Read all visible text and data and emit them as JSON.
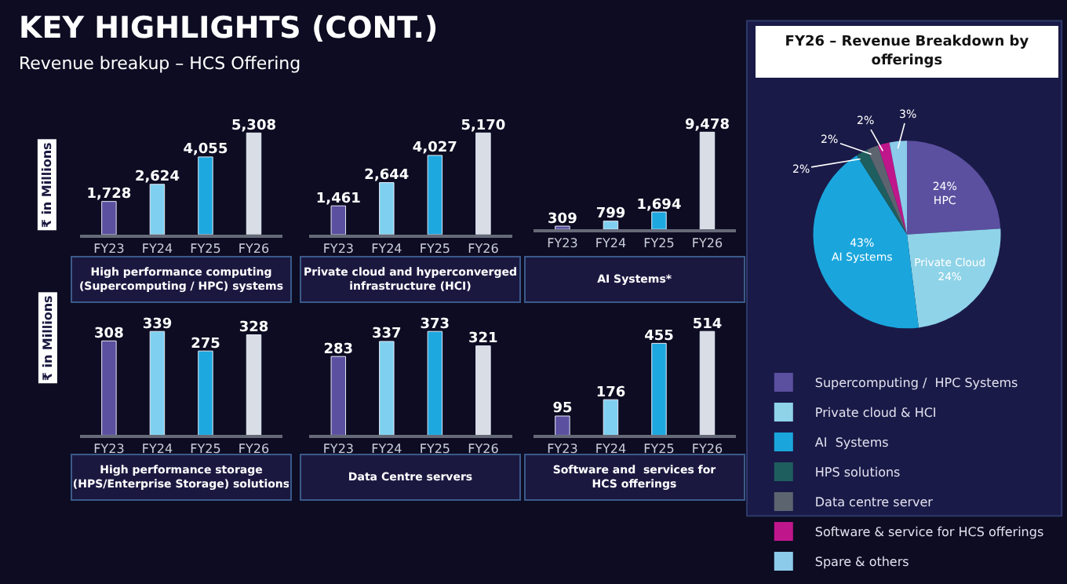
{
  "chart_data": [
    {
      "type": "other",
      "title": "KEY HIGHLIGHTS (CONT.)",
      "subtitle": "Revenue breakup – HCS Offering"
    },
    {
      "type": "bar",
      "title": "High performance computing\n(Supercomputing / HPC) systems",
      "ylabel": "₹ in Millions",
      "categories": [
        "FY23",
        "FY24",
        "FY25",
        "FY26"
      ],
      "values": [
        1728,
        2624,
        4055,
        5308
      ],
      "value_labels": [
        "1,728",
        "2,624",
        "4,055",
        "5,308"
      ],
      "colors": [
        "#5b4fa0",
        "#7fd0f0",
        "#1ea8e0",
        "#d8dde6"
      ]
    },
    {
      "type": "bar",
      "title": "Private cloud and hyperconverged\ninfrastructure (HCI)",
      "categories": [
        "FY23",
        "FY24",
        "FY25",
        "FY26"
      ],
      "values": [
        1461,
        2644,
        4027,
        5170
      ],
      "value_labels": [
        "1,461",
        "2,644",
        "4,027",
        "5,170"
      ],
      "colors": [
        "#5b4fa0",
        "#7fd0f0",
        "#1ea8e0",
        "#d8dde6"
      ]
    },
    {
      "type": "bar",
      "title": "AI Systems*",
      "categories": [
        "FY23",
        "FY24",
        "FY25",
        "FY26"
      ],
      "values": [
        309,
        799,
        1694,
        9478
      ],
      "value_labels": [
        "309",
        "799",
        "1,694",
        "9,478"
      ],
      "colors": [
        "#5b4fa0",
        "#7fd0f0",
        "#1ea8e0",
        "#d8dde6"
      ]
    },
    {
      "type": "bar",
      "title": "High performance storage\n(HPS/Enterprise Storage) solutions",
      "ylabel": "₹ in Millions",
      "categories": [
        "FY23",
        "FY24",
        "FY25",
        "FY26"
      ],
      "values": [
        308,
        339,
        275,
        328
      ],
      "colors": [
        "#5b4fa0",
        "#7fd0f0",
        "#1ea8e0",
        "#d8dde6"
      ],
      "data_labels": true
    },
    {
      "type": "bar",
      "title": "Data Centre servers",
      "categories": [
        "FY23",
        "FY24",
        "FY25",
        "FY26"
      ],
      "values": [
        283,
        337,
        373,
        321
      ],
      "colors": [
        "#5b4fa0",
        "#7fd0f0",
        "#1ea8e0",
        "#d8dde6"
      ],
      "data_labels": true
    },
    {
      "type": "bar",
      "title": "Software and  services for\nHCS offerings",
      "categories": [
        "FY23",
        "FY24",
        "FY25",
        "FY26"
      ],
      "values": [
        95,
        176,
        455,
        514
      ],
      "colors": [
        "#5b4fa0",
        "#7fd0f0",
        "#1ea8e0",
        "#d8dde6"
      ],
      "data_labels": true
    },
    {
      "type": "pie",
      "title": "FY26 – Revenue Breakdown by\nofferings",
      "legend": "bottom",
      "categories": [
        "Supercomputing /  HPC Systems",
        "Private cloud & HCI",
        "AI  Systems",
        "HPS solutions",
        "Data centre server",
        "Software & service for HCS offerings",
        "Spare & others"
      ],
      "values": [
        24,
        24,
        43,
        2,
        2,
        2,
        3
      ],
      "value_labels": [
        "24%\nHPC",
        "Private Cloud\n24%",
        "43%\nAI Systems",
        "2%",
        "2%",
        "2%",
        "3%"
      ],
      "colors": [
        "#5b4fa0",
        "#8fd3e8",
        "#1aa6dc",
        "#1f5e5e",
        "#5c6470",
        "#c0168c",
        "#8ccbea"
      ]
    }
  ]
}
